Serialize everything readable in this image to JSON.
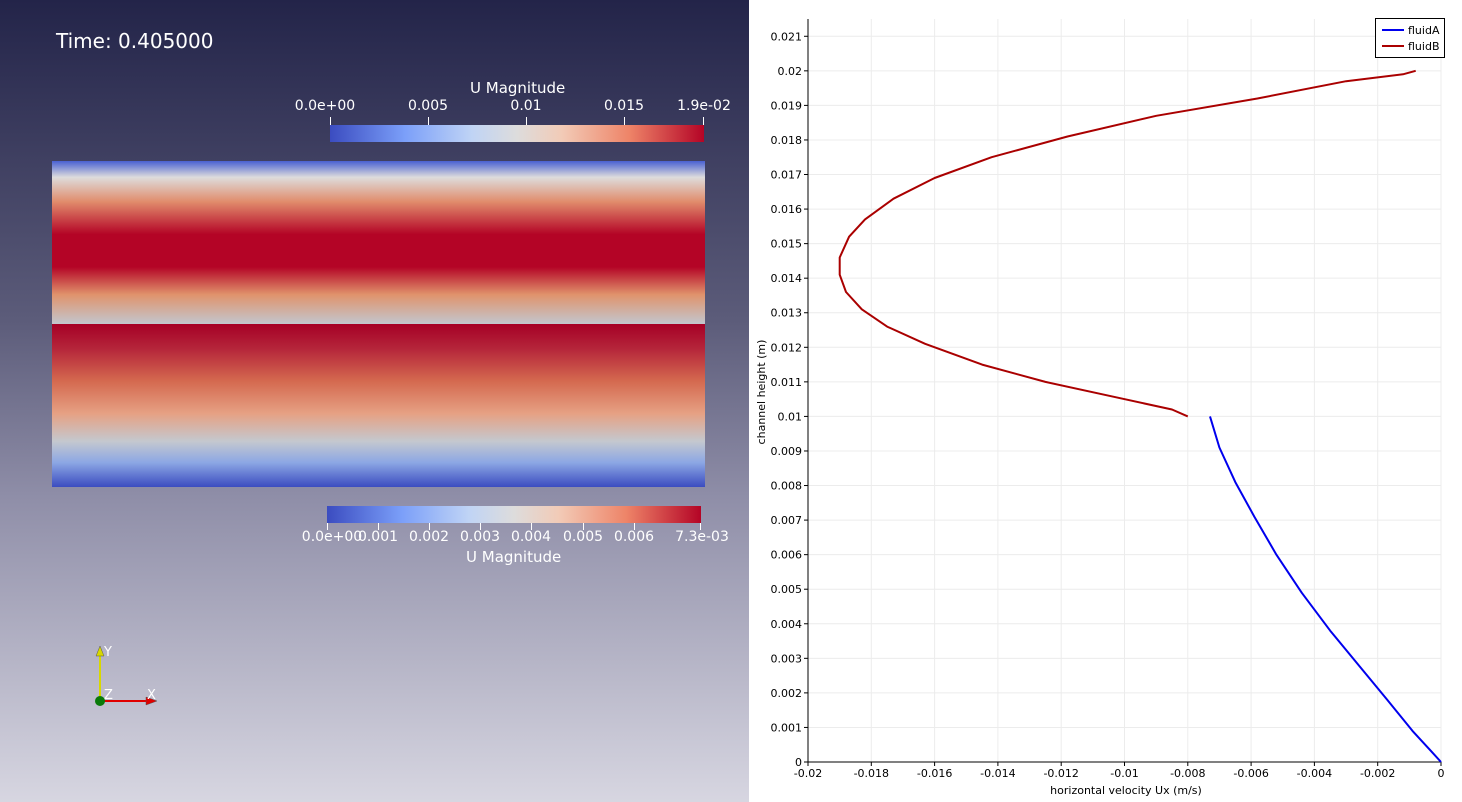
{
  "viewport": {
    "time_label": "Time: 0.405000",
    "top_colorbar": {
      "title": "U Magnitude",
      "ticks": [
        "0.0e+00",
        "0.005",
        "0.01",
        "0.015",
        "1.9e-02"
      ]
    },
    "bottom_colorbar": {
      "title": "U Magnitude",
      "ticks": [
        "0.0e+00",
        "0.001",
        "0.002",
        "0.003",
        "0.004",
        "0.005",
        "0.006",
        "7.3e-03"
      ]
    },
    "axes": {
      "y": "Y",
      "z": "Z",
      "x": "X"
    }
  },
  "chart_data": {
    "type": "line",
    "xlabel": "horizontal velocity Ux (m/s)",
    "ylabel": "channel height (m)",
    "xlim": [
      -0.02,
      0
    ],
    "ylim": [
      0,
      0.0215
    ],
    "grid": true,
    "legend_position": "top-right",
    "x_ticks": [
      "-0.02",
      "-0.018",
      "-0.016",
      "-0.014",
      "-0.012",
      "-0.01",
      "-0.008",
      "-0.006",
      "-0.004",
      "-0.002",
      "0"
    ],
    "y_ticks": [
      "0",
      "0.001",
      "0.002",
      "0.003",
      "0.004",
      "0.005",
      "0.006",
      "0.007",
      "0.008",
      "0.009",
      "0.01",
      "0.011",
      "0.012",
      "0.013",
      "0.014",
      "0.015",
      "0.016",
      "0.017",
      "0.018",
      "0.019",
      "0.02",
      "0.021"
    ],
    "series": [
      {
        "name": "fluidA",
        "color": "#0000ee",
        "points": [
          [
            0,
            0
          ],
          [
            -0.0003,
            0.0003
          ],
          [
            -0.0009,
            0.0009
          ],
          [
            -0.0017,
            0.0018
          ],
          [
            -0.0026,
            0.0028
          ],
          [
            -0.0035,
            0.0038
          ],
          [
            -0.0044,
            0.0049
          ],
          [
            -0.0052,
            0.006
          ],
          [
            -0.0059,
            0.0071
          ],
          [
            -0.0065,
            0.0081
          ],
          [
            -0.007,
            0.0091
          ],
          [
            -0.0073,
            0.01
          ]
        ]
      },
      {
        "name": "fluidB",
        "color": "#aa0000",
        "points": [
          [
            -0.008,
            0.01
          ],
          [
            -0.0085,
            0.0102
          ],
          [
            -0.0105,
            0.0106
          ],
          [
            -0.0125,
            0.011
          ],
          [
            -0.0145,
            0.0115
          ],
          [
            -0.0163,
            0.0121
          ],
          [
            -0.0175,
            0.0126
          ],
          [
            -0.0183,
            0.0131
          ],
          [
            -0.0188,
            0.0136
          ],
          [
            -0.019,
            0.0141
          ],
          [
            -0.019,
            0.0146
          ],
          [
            -0.0187,
            0.0152
          ],
          [
            -0.0182,
            0.0157
          ],
          [
            -0.0173,
            0.0163
          ],
          [
            -0.016,
            0.0169
          ],
          [
            -0.0142,
            0.0175
          ],
          [
            -0.0118,
            0.0181
          ],
          [
            -0.009,
            0.0187
          ],
          [
            -0.0058,
            0.0192
          ],
          [
            -0.003,
            0.0197
          ],
          [
            -0.0012,
            0.0199
          ],
          [
            -0.0008,
            0.02
          ]
        ]
      }
    ]
  }
}
